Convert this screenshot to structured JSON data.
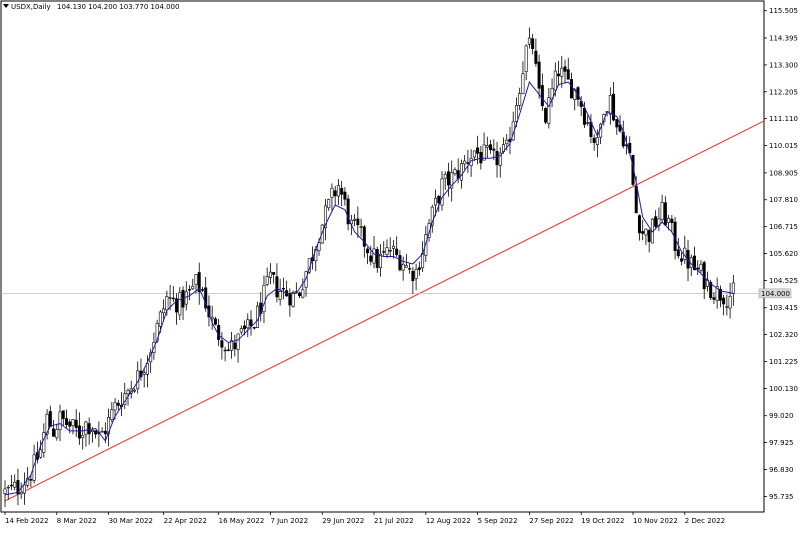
{
  "header": {
    "dropdown_icon": "triangle-down-icon",
    "symbol": "USDX,Daily",
    "ohlc": "104.130 104.200 103.770 104.000"
  },
  "current_price_label": "104.000",
  "colors": {
    "background": "#ffffff",
    "border": "#000000",
    "candle_bull": "#ffffff",
    "candle_bear": "#000000",
    "ma_line": "#1c1ca0",
    "trendline": "#ef2b2b",
    "price_line": "#c0c0c0"
  },
  "chart_data": {
    "type": "candlestick",
    "title": "USDX,Daily",
    "ylim": [
      95.1,
      115.9
    ],
    "y_ticks": [
      "115.505",
      "114.395",
      "113.300",
      "112.205",
      "111.110",
      "110.015",
      "108.905",
      "107.810",
      "106.715",
      "105.620",
      "104.525",
      "103.415",
      "102.320",
      "101.225",
      "100.130",
      "99.020",
      "97.925",
      "96.830",
      "95.735"
    ],
    "x_ticks": [
      "14 Feb 2022",
      "8 Mar 2022",
      "30 Mar 2022",
      "22 Apr 2022",
      "16 May 2022",
      "7 Jun 2022",
      "29 Jun 2022",
      "21 Jul 2022",
      "12 Aug 2022",
      "5 Sep 2022",
      "27 Sep 2022",
      "19 Oct 2022",
      "10 Nov 2022",
      "2 Dec 2022"
    ],
    "x_tick_bar_index": [
      0,
      16,
      32,
      49,
      66,
      82,
      98,
      114,
      130,
      146,
      162,
      178,
      194,
      210
    ],
    "close_anchors": [
      [
        0,
        95.9
      ],
      [
        4,
        96.1
      ],
      [
        8,
        96.7
      ],
      [
        11,
        97.6
      ],
      [
        13,
        98.9
      ],
      [
        15,
        98.4
      ],
      [
        17,
        98.9
      ],
      [
        20,
        98.6
      ],
      [
        23,
        98.3
      ],
      [
        25,
        98.7
      ],
      [
        27,
        98.6
      ],
      [
        29,
        98.1
      ],
      [
        31,
        98.5
      ],
      [
        34,
        99.4
      ],
      [
        37,
        99.9
      ],
      [
        41,
        100.6
      ],
      [
        44,
        101.4
      ],
      [
        47,
        102.6
      ],
      [
        50,
        103.8
      ],
      [
        54,
        103.6
      ],
      [
        57,
        104.0
      ],
      [
        59,
        104.4
      ],
      [
        61,
        104.1
      ],
      [
        63,
        103.2
      ],
      [
        65,
        102.5
      ],
      [
        67,
        102.2
      ],
      [
        69,
        101.7
      ],
      [
        71,
        101.9
      ],
      [
        73,
        102.3
      ],
      [
        75,
        102.5
      ],
      [
        77,
        102.8
      ],
      [
        80,
        103.9
      ],
      [
        82,
        104.6
      ],
      [
        84,
        104.2
      ],
      [
        87,
        104.0
      ],
      [
        89,
        103.9
      ],
      [
        91,
        104.1
      ],
      [
        93,
        104.9
      ],
      [
        95,
        105.6
      ],
      [
        97,
        106.5
      ],
      [
        99,
        107.2
      ],
      [
        101,
        107.9
      ],
      [
        103,
        108.4
      ],
      [
        105,
        107.6
      ],
      [
        107,
        106.7
      ],
      [
        109,
        106.5
      ],
      [
        111,
        106.1
      ],
      [
        113,
        105.6
      ],
      [
        115,
        105.3
      ],
      [
        117,
        105.5
      ],
      [
        119,
        105.8
      ],
      [
        121,
        105.5
      ],
      [
        123,
        105.3
      ],
      [
        125,
        104.9
      ],
      [
        127,
        104.9
      ],
      [
        129,
        105.8
      ],
      [
        131,
        106.8
      ],
      [
        133,
        107.6
      ],
      [
        135,
        108.4
      ],
      [
        137,
        108.6
      ],
      [
        139,
        108.8
      ],
      [
        141,
        109.1
      ],
      [
        143,
        109.5
      ],
      [
        145,
        109.8
      ],
      [
        147,
        109.6
      ],
      [
        149,
        109.6
      ],
      [
        151,
        109.4
      ],
      [
        153,
        109.6
      ],
      [
        155,
        109.8
      ],
      [
        157,
        111.2
      ],
      [
        159,
        112.5
      ],
      [
        161,
        113.9
      ],
      [
        163,
        114.1
      ],
      [
        165,
        112.0
      ],
      [
        167,
        111.2
      ],
      [
        169,
        112.2
      ],
      [
        171,
        113.1
      ],
      [
        173,
        112.7
      ],
      [
        175,
        112.4
      ],
      [
        177,
        112.1
      ],
      [
        179,
        111.3
      ],
      [
        181,
        110.6
      ],
      [
        183,
        110.0
      ],
      [
        185,
        111.7
      ],
      [
        187,
        111.9
      ],
      [
        189,
        110.8
      ],
      [
        191,
        110.4
      ],
      [
        193,
        109.5
      ],
      [
        195,
        107.3
      ],
      [
        197,
        106.5
      ],
      [
        199,
        106.4
      ],
      [
        201,
        106.9
      ],
      [
        203,
        107.3
      ],
      [
        205,
        106.9
      ],
      [
        207,
        106.0
      ],
      [
        209,
        105.6
      ],
      [
        211,
        105.3
      ],
      [
        213,
        105.0
      ],
      [
        215,
        104.8
      ],
      [
        217,
        104.4
      ],
      [
        219,
        104.1
      ],
      [
        221,
        104.0
      ],
      [
        223,
        103.9
      ],
      [
        225,
        104.0
      ]
    ],
    "moving_average": {
      "color": "#1c1ca0",
      "anchors": [
        [
          0,
          95.8
        ],
        [
          4,
          95.9
        ],
        [
          8,
          96.6
        ],
        [
          11,
          97.8
        ],
        [
          14,
          98.6
        ],
        [
          17,
          98.7
        ],
        [
          20,
          98.4
        ],
        [
          24,
          98.4
        ],
        [
          28,
          98.5
        ],
        [
          31,
          98.0
        ],
        [
          34,
          99.0
        ],
        [
          37,
          99.6
        ],
        [
          41,
          100.4
        ],
        [
          44,
          101.2
        ],
        [
          47,
          102.1
        ],
        [
          50,
          103.3
        ],
        [
          53,
          103.7
        ],
        [
          57,
          103.9
        ],
        [
          60,
          104.2
        ],
        [
          62,
          103.6
        ],
        [
          64,
          102.8
        ],
        [
          66,
          102.3
        ],
        [
          69,
          102.0
        ],
        [
          72,
          102.1
        ],
        [
          75,
          102.5
        ],
        [
          78,
          102.9
        ],
        [
          81,
          103.9
        ],
        [
          84,
          104.2
        ],
        [
          87,
          104.0
        ],
        [
          90,
          104.0
        ],
        [
          93,
          104.6
        ],
        [
          96,
          105.8
        ],
        [
          99,
          106.8
        ],
        [
          102,
          107.6
        ],
        [
          105,
          107.4
        ],
        [
          108,
          106.5
        ],
        [
          111,
          106.1
        ],
        [
          114,
          105.6
        ],
        [
          117,
          105.5
        ],
        [
          120,
          105.5
        ],
        [
          123,
          105.3
        ],
        [
          126,
          105.2
        ],
        [
          129,
          105.6
        ],
        [
          132,
          106.9
        ],
        [
          135,
          107.9
        ],
        [
          138,
          108.4
        ],
        [
          141,
          108.8
        ],
        [
          144,
          109.4
        ],
        [
          147,
          109.5
        ],
        [
          150,
          109.5
        ],
        [
          153,
          109.6
        ],
        [
          156,
          110.1
        ],
        [
          159,
          111.3
        ],
        [
          162,
          112.6
        ],
        [
          165,
          112.1
        ],
        [
          168,
          111.6
        ],
        [
          171,
          112.5
        ],
        [
          174,
          112.6
        ],
        [
          177,
          112.1
        ],
        [
          180,
          111.3
        ],
        [
          183,
          110.4
        ],
        [
          186,
          111.4
        ],
        [
          189,
          111.2
        ],
        [
          191,
          110.6
        ],
        [
          194,
          109.2
        ],
        [
          197,
          107.1
        ],
        [
          200,
          106.5
        ],
        [
          203,
          106.9
        ],
        [
          206,
          106.5
        ],
        [
          209,
          105.7
        ],
        [
          212,
          105.2
        ],
        [
          215,
          104.8
        ],
        [
          218,
          104.4
        ],
        [
          221,
          104.1
        ],
        [
          225,
          104.0
        ]
      ]
    },
    "trendline": {
      "color": "#ef2b2b",
      "x_bar": [
        0,
        260
      ],
      "y": [
        95.55,
        112.7
      ]
    },
    "price_line": {
      "value": 104.0
    },
    "bar_count": 226,
    "x_axis_end_bar": 232,
    "grid": false,
    "legend": "none"
  }
}
